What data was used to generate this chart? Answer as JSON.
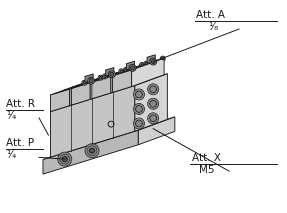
{
  "labels": {
    "att_a": "Att. A",
    "att_a_size": "¹⁄₈",
    "att_r": "Att. R",
    "att_r_size": "¹⁄₄",
    "att_p": "Att. P",
    "att_p_size": "¹⁄₄",
    "att_x": "Att. X",
    "att_x_size": "M5"
  },
  "lc": "#1a1a1a",
  "col_top": "#e8e8e8",
  "col_front": "#c0c0c0",
  "col_right": "#d4d4d4",
  "col_top2": "#dcdcdc",
  "col_dark": "#909090",
  "col_hole": "#707070",
  "col_hole2": "#444444"
}
